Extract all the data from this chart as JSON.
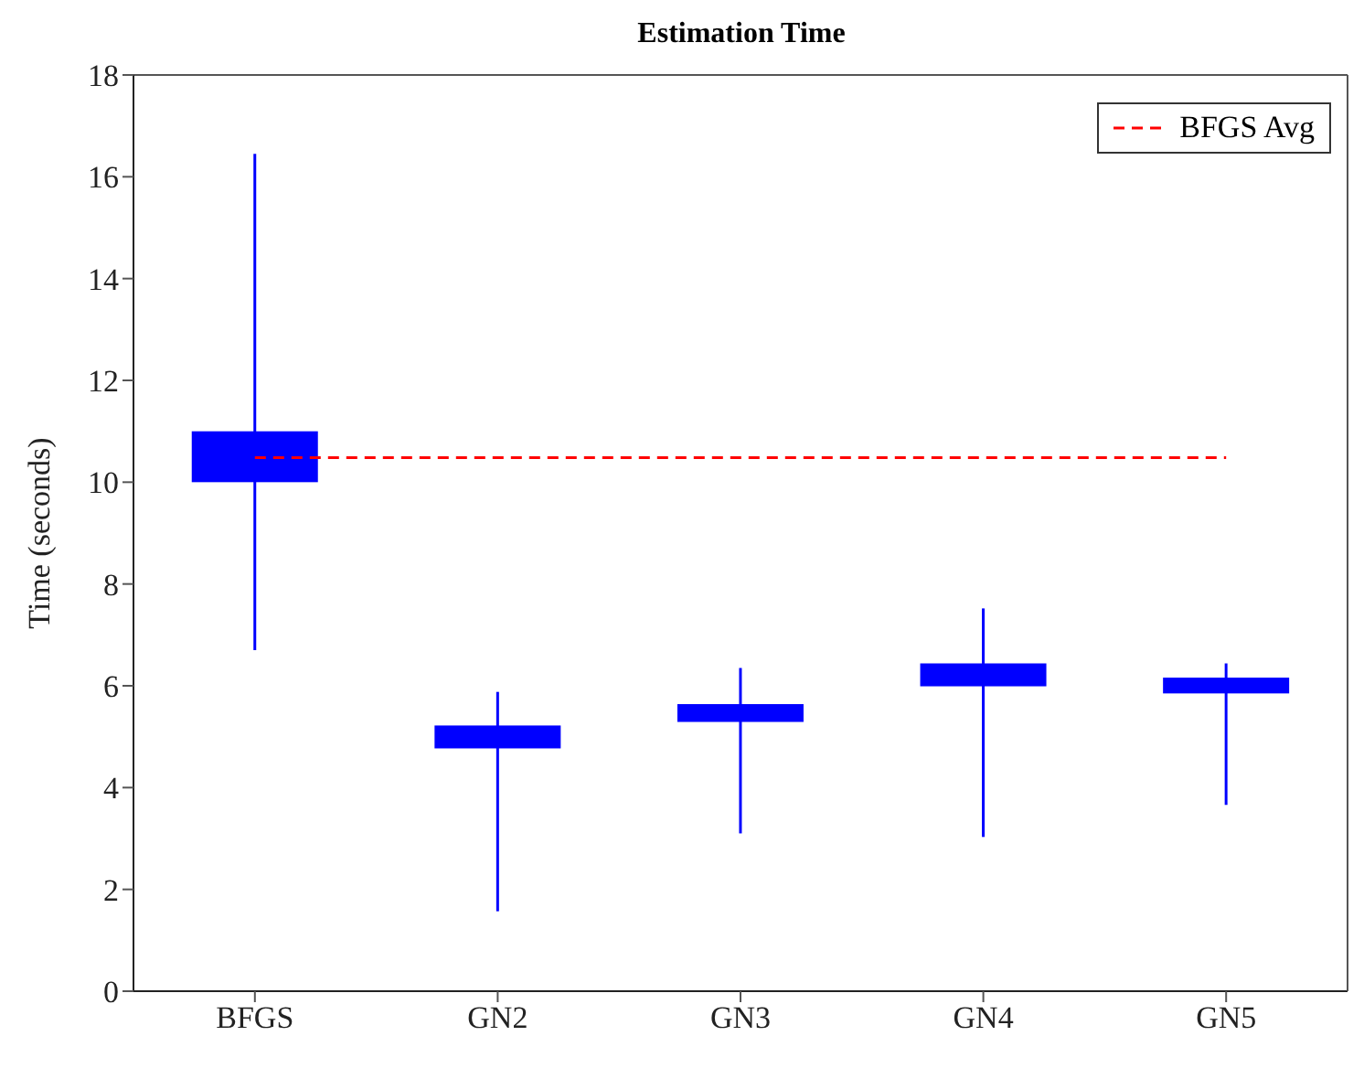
{
  "chart_data": {
    "type": "candlestick",
    "title": "Estimation Time",
    "ylabel": "Time (seconds)",
    "categories": [
      "BFGS",
      "GN2",
      "GN3",
      "GN4",
      "GN5"
    ],
    "ohlc": [
      [
        10.0,
        16.45,
        6.7,
        11.0
      ],
      [
        4.77,
        5.88,
        1.57,
        5.22
      ],
      [
        5.29,
        6.35,
        3.1,
        5.64
      ],
      [
        5.99,
        7.52,
        3.03,
        6.44
      ],
      [
        5.85,
        6.44,
        3.66,
        6.16
      ]
    ],
    "color": "#0000ff",
    "series": [
      {
        "name": "BFGS Avg",
        "type": "line",
        "color": "#ff0000",
        "line_style": "dashed",
        "marker": "none",
        "values": [
          10.48,
          10.48,
          10.48,
          10.48,
          10.48
        ]
      }
    ],
    "ylim": [
      0,
      18
    ],
    "yticks": [
      0,
      2,
      4,
      6,
      8,
      10,
      12,
      14,
      16,
      18
    ],
    "grid": false,
    "legend": "top right"
  }
}
